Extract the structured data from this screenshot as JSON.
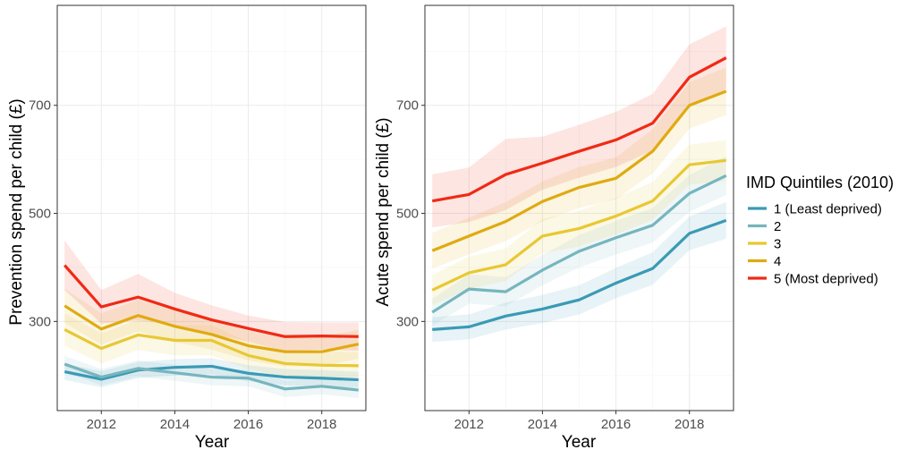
{
  "colors": {
    "q1": "#3a9ab5",
    "q2": "#76b5be",
    "q3": "#e8c832",
    "q4": "#e0aa10",
    "q5": "#f02a14"
  },
  "legend": {
    "title": "IMD Quintiles (2010)",
    "items": [
      {
        "label": "1 (Least deprived)",
        "color": "#3a9ab5"
      },
      {
        "label": "2",
        "color": "#76b5be"
      },
      {
        "label": "3",
        "color": "#e8c832"
      },
      {
        "label": "4",
        "color": "#e0aa10"
      },
      {
        "label": "5 (Most deprived)",
        "color": "#f02a14"
      }
    ]
  },
  "chart_data": [
    {
      "type": "line",
      "xlabel": "Year",
      "ylabel": "Prevention spend per child (£)",
      "xlim": [
        2010.8,
        2019.2
      ],
      "ylim": [
        135,
        885
      ],
      "xticks": [
        2012,
        2014,
        2016,
        2018
      ],
      "yticks": [
        300,
        500,
        700
      ],
      "grid": true,
      "x": [
        2011,
        2012,
        2013,
        2014,
        2015,
        2016,
        2017,
        2018,
        2019
      ],
      "series": [
        {
          "name": "1 (Least deprived)",
          "color": "#3a9ab5",
          "values": [
            207,
            193,
            210,
            215,
            217,
            204,
            197,
            195,
            192
          ],
          "lower": [
            192,
            178,
            195,
            200,
            202,
            189,
            182,
            180,
            177
          ],
          "upper": [
            222,
            208,
            225,
            230,
            232,
            219,
            212,
            210,
            207
          ]
        },
        {
          "name": "2",
          "color": "#76b5be",
          "values": [
            221,
            197,
            213,
            205,
            197,
            195,
            175,
            180,
            173
          ],
          "lower": [
            206,
            182,
            198,
            190,
            182,
            180,
            160,
            165,
            158
          ],
          "upper": [
            236,
            212,
            228,
            220,
            212,
            210,
            190,
            195,
            188
          ]
        },
        {
          "name": "3",
          "color": "#e8c832",
          "values": [
            285,
            250,
            275,
            265,
            265,
            237,
            222,
            219,
            218
          ],
          "lower": [
            255,
            222,
            247,
            237,
            237,
            212,
            197,
            194,
            193
          ],
          "upper": [
            315,
            278,
            303,
            293,
            293,
            262,
            247,
            244,
            243
          ]
        },
        {
          "name": "4",
          "color": "#e0aa10",
          "values": [
            329,
            286,
            311,
            291,
            276,
            255,
            244,
            244,
            258
          ],
          "lower": [
            297,
            257,
            282,
            262,
            248,
            228,
            217,
            217,
            231
          ],
          "upper": [
            361,
            315,
            340,
            320,
            304,
            282,
            271,
            271,
            285
          ]
        },
        {
          "name": "5 (Most deprived)",
          "color": "#f02a14",
          "values": [
            404,
            327,
            345,
            323,
            303,
            287,
            272,
            273,
            272
          ],
          "lower": [
            358,
            296,
            302,
            293,
            276,
            263,
            245,
            248,
            246
          ],
          "upper": [
            450,
            358,
            388,
            353,
            330,
            311,
            299,
            298,
            298
          ]
        }
      ]
    },
    {
      "type": "line",
      "xlabel": "Year",
      "ylabel": "Acute spend per child (£)",
      "xlim": [
        2010.8,
        2019.2
      ],
      "ylim": [
        135,
        885
      ],
      "xticks": [
        2012,
        2014,
        2016,
        2018
      ],
      "yticks": [
        300,
        500,
        700
      ],
      "grid": true,
      "x": [
        2011,
        2012,
        2013,
        2014,
        2015,
        2016,
        2017,
        2018,
        2019
      ],
      "series": [
        {
          "name": "1 (Least deprived)",
          "color": "#3a9ab5",
          "values": [
            285,
            290,
            310,
            323,
            340,
            371,
            398,
            463,
            487
          ],
          "lower": [
            262,
            267,
            285,
            297,
            313,
            343,
            368,
            432,
            453
          ],
          "upper": [
            308,
            313,
            335,
            349,
            367,
            399,
            428,
            494,
            521
          ]
        },
        {
          "name": "2",
          "color": "#76b5be",
          "values": [
            317,
            360,
            355,
            395,
            430,
            455,
            478,
            537,
            570
          ],
          "lower": [
            292,
            333,
            328,
            367,
            400,
            424,
            446,
            503,
            534
          ],
          "upper": [
            342,
            387,
            382,
            423,
            460,
            486,
            510,
            571,
            606
          ]
        },
        {
          "name": "3",
          "color": "#e8c832",
          "values": [
            358,
            390,
            405,
            458,
            472,
            495,
            523,
            590,
            598
          ],
          "lower": [
            330,
            360,
            375,
            426,
            439,
            461,
            488,
            553,
            560
          ],
          "upper": [
            386,
            420,
            435,
            490,
            505,
            529,
            558,
            627,
            636
          ]
        },
        {
          "name": "4",
          "color": "#e0aa10",
          "values": [
            431,
            458,
            485,
            522,
            548,
            565,
            615,
            700,
            726
          ],
          "lower": [
            398,
            424,
            449,
            485,
            510,
            526,
            574,
            657,
            682
          ],
          "upper": [
            464,
            492,
            521,
            559,
            586,
            604,
            656,
            743,
            770
          ]
        },
        {
          "name": "5 (Most deprived)",
          "color": "#f02a14",
          "values": [
            523,
            535,
            572,
            593,
            615,
            636,
            667,
            752,
            788
          ],
          "lower": [
            474,
            484,
            506,
            544,
            566,
            586,
            616,
            696,
            730
          ],
          "upper": [
            572,
            585,
            638,
            642,
            664,
            688,
            721,
            813,
            846
          ]
        }
      ]
    }
  ]
}
